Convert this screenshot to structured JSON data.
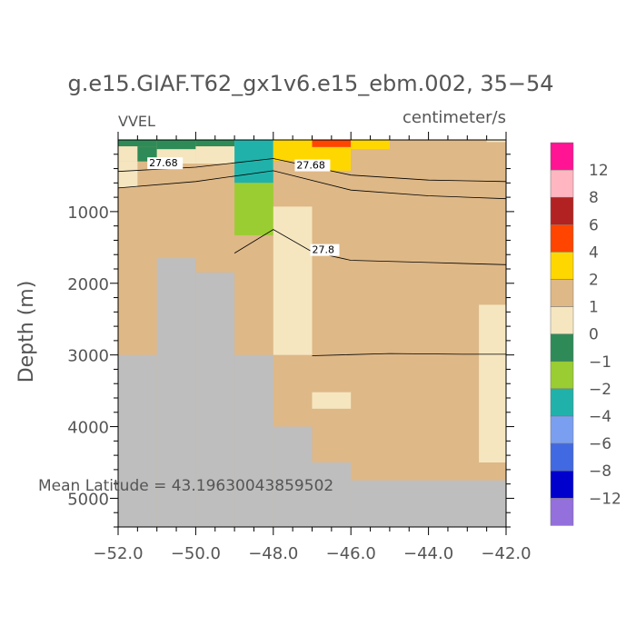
{
  "chart_data": {
    "type": "heatmap",
    "title": "g.e15.GIAF.T62_gx1v6.e15_ebm.002, 35−54",
    "left_label": "VVEL",
    "units_label": "centimeter/s",
    "ylabel": "Depth (m)",
    "xlabel": "",
    "xlim": [
      -52.0,
      -42.0
    ],
    "ylim": [
      5400,
      0
    ],
    "x_ticks": [
      -52.0,
      -50.0,
      -48.0,
      -46.0,
      -44.0,
      -42.0
    ],
    "x_tick_labels": [
      "−52.0",
      "−50.0",
      "−48.0",
      "−46.0",
      "−44.0",
      "−42.0"
    ],
    "y_ticks": [
      1000,
      2000,
      3000,
      4000,
      5000
    ],
    "y_tick_labels": [
      "1000",
      "2000",
      "3000",
      "4000",
      "5000"
    ],
    "annotation": "Mean Latitude = 43.19630043859502",
    "land_color": "#bebebe",
    "background_value": "0 to 1",
    "colorbar": {
      "labels": [
        "12",
        "8",
        "6",
        "4",
        "2",
        "1",
        "0",
        "−1",
        "−2",
        "−4",
        "−6",
        "−8",
        "−12"
      ],
      "colors": [
        "#ff1493",
        "#ffb6c1",
        "#b22222",
        "#ff4500",
        "#ffd700",
        "#deb887",
        "#f5e6c0",
        "#2e8b57",
        "#9acd32",
        "#20b2aa",
        "#7b9ff0",
        "#4169e1",
        "#0000cd",
        "#9370db"
      ]
    },
    "land": [
      {
        "x": [
          -52.0,
          -51.0
        ],
        "depth": [
          3000,
          5400
        ]
      },
      {
        "x": [
          -51.0,
          -50.0
        ],
        "depth": [
          1650,
          5400
        ]
      },
      {
        "x": [
          -50.0,
          -49.0
        ],
        "depth": [
          1850,
          5400
        ]
      },
      {
        "x": [
          -49.0,
          -48.0
        ],
        "depth": [
          3000,
          5400
        ]
      },
      {
        "x": [
          -48.0,
          -47.0
        ],
        "depth": [
          4000,
          5400
        ]
      },
      {
        "x": [
          -47.0,
          -46.0
        ],
        "depth": [
          4500,
          5400
        ]
      },
      {
        "x": [
          -46.0,
          -42.0
        ],
        "depth": [
          4750,
          5400
        ]
      }
    ],
    "cells": [
      {
        "x": [
          -52.0,
          -51.0
        ],
        "depth": [
          0,
          90
        ],
        "value": "-2 to -1"
      },
      {
        "x": [
          -52.0,
          -51.5
        ],
        "depth": [
          90,
          300
        ],
        "value": "-1 to 0"
      },
      {
        "x": [
          -51.5,
          -51.0
        ],
        "depth": [
          90,
          300
        ],
        "value": "-2 to -1"
      },
      {
        "x": [
          -52.0,
          -51.5
        ],
        "depth": [
          300,
          660
        ],
        "value": "-1 to 0"
      },
      {
        "x": [
          -51.0,
          -50.0
        ],
        "depth": [
          0,
          130
        ],
        "value": "-2 to -1"
      },
      {
        "x": [
          -51.0,
          -50.0
        ],
        "depth": [
          130,
          330
        ],
        "value": "-1 to 0"
      },
      {
        "x": [
          -50.0,
          -49.0
        ],
        "depth": [
          0,
          90
        ],
        "value": "-2 to -1"
      },
      {
        "x": [
          -50.0,
          -49.0
        ],
        "depth": [
          90,
          330
        ],
        "value": "-1 to 0"
      },
      {
        "x": [
          -49.0,
          -48.0
        ],
        "depth": [
          0,
          600
        ],
        "value": "-6 to -4"
      },
      {
        "x": [
          -49.0,
          -48.0
        ],
        "depth": [
          600,
          1330
        ],
        "value": "-4 to -2"
      },
      {
        "x": [
          -48.0,
          -47.0
        ],
        "depth": [
          0,
          290
        ],
        "value": "1 to 2"
      },
      {
        "x": [
          -48.0,
          -47.0
        ],
        "depth": [
          290,
          440
        ],
        "value": "0 to 1"
      },
      {
        "x": [
          -47.0,
          -46.0
        ],
        "depth": [
          0,
          100
        ],
        "value": "2 to 4"
      },
      {
        "x": [
          -47.0,
          -46.0
        ],
        "depth": [
          100,
          430
        ],
        "value": "1 to 2"
      },
      {
        "x": [
          -47.0,
          -46.0
        ],
        "depth": [
          430,
          920
        ],
        "value": "0 to 1"
      },
      {
        "x": [
          -46.0,
          -45.0
        ],
        "depth": [
          0,
          130
        ],
        "value": "1 to 2"
      },
      {
        "x": [
          -46.0,
          -45.0
        ],
        "depth": [
          130,
          480
        ],
        "value": "0 to 1"
      },
      {
        "x": [
          -45.0,
          -43.5
        ],
        "depth": [
          0,
          120
        ],
        "value": "0 to 1"
      },
      {
        "x": [
          -43.5,
          -42.5
        ],
        "depth": [
          0,
          90
        ],
        "value": "0 to 1"
      },
      {
        "x": [
          -42.5,
          -42.0
        ],
        "depth": [
          0,
          30
        ],
        "value": "-1 to 0"
      },
      {
        "x": [
          -48.0,
          -47.0
        ],
        "depth": [
          930,
          3000
        ],
        "value": "-1 to 0"
      },
      {
        "x": [
          -47.0,
          -46.0
        ],
        "depth": [
          3520,
          3750
        ],
        "value": "-1 to 0"
      },
      {
        "x": [
          -42.7,
          -42.0
        ],
        "depth": [
          2300,
          4500
        ],
        "value": "-1 to 0"
      }
    ],
    "contours": [
      {
        "label": "27.68",
        "points": [
          [
            -52.0,
            440
          ],
          [
            -50.0,
            380
          ],
          [
            -48.0,
            260
          ],
          [
            -46.0,
            490
          ],
          [
            -44.0,
            560
          ],
          [
            -42.0,
            580
          ]
        ]
      },
      {
        "label": "27.68",
        "points": [
          [
            -52.0,
            670
          ],
          [
            -50.0,
            580
          ],
          [
            -48.0,
            430
          ],
          [
            -46.0,
            700
          ],
          [
            -44.0,
            780
          ],
          [
            -42.0,
            820
          ]
        ]
      },
      {
        "label": "27.8",
        "points": [
          [
            -49.0,
            1580
          ],
          [
            -48.0,
            1250
          ],
          [
            -47.0,
            1560
          ],
          [
            -46.0,
            1680
          ],
          [
            -44.0,
            1710
          ],
          [
            -42.0,
            1740
          ]
        ]
      },
      {
        "label": "",
        "points": [
          [
            -47.0,
            3010
          ],
          [
            -45.0,
            2980
          ],
          [
            -43.0,
            2990
          ],
          [
            -42.0,
            2990
          ]
        ]
      }
    ],
    "contour_labels": [
      {
        "label": "27.68",
        "x": -51.2,
        "depth": 370
      },
      {
        "label": "27.68",
        "x": -47.4,
        "depth": 400
      },
      {
        "label": "27.8",
        "x": -47.0,
        "depth": 1580
      }
    ]
  }
}
